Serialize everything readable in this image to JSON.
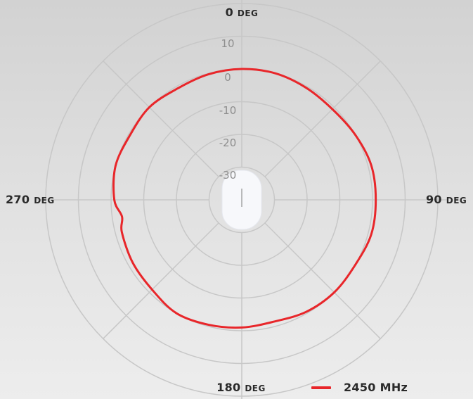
{
  "chart_data": {
    "type": "polar-line",
    "angular_labels": [
      {
        "angle": 0,
        "value": "0",
        "unit": "DEG"
      },
      {
        "angle": 90,
        "value": "90",
        "unit": "DEG"
      },
      {
        "angle": 180,
        "value": "180",
        "unit": "DEG"
      },
      {
        "angle": 270,
        "value": "270",
        "unit": "DEG"
      }
    ],
    "radial_ticks": [
      "10",
      "0",
      "-10",
      "-20",
      "-30"
    ],
    "radial_tick_values": [
      10,
      0,
      -10,
      -20,
      -30
    ],
    "rlim": [
      -40,
      20
    ],
    "grid": true,
    "legend_position": "bottom-right",
    "series": [
      {
        "name": "2450 MHz",
        "color": "#e8262a",
        "angles_deg": [
          0,
          15,
          30,
          45,
          60,
          75,
          90,
          105,
          120,
          135,
          150,
          165,
          180,
          195,
          210,
          225,
          240,
          255,
          262,
          270,
          285,
          300,
          315,
          330,
          345
        ],
        "values_dbi": [
          0.0,
          0.0,
          -0.5,
          -0.8,
          0.0,
          1.0,
          1.0,
          1.0,
          0.0,
          0.0,
          -0.5,
          -1.5,
          -1.0,
          -0.5,
          0.0,
          -1.2,
          -1.5,
          -2.0,
          -3.0,
          -1.0,
          0.0,
          -0.5,
          0.0,
          -0.7,
          -0.3
        ]
      }
    ]
  },
  "labels": {
    "top": {
      "value": "0",
      "unit": "DEG"
    },
    "right": {
      "value": "90",
      "unit": "DEG"
    },
    "bottom": {
      "value": "180",
      "unit": "DEG"
    },
    "left": {
      "value": "270",
      "unit": "DEG"
    }
  },
  "legend": {
    "label": "2450 MHz",
    "color": "#e8262a"
  },
  "colors": {
    "grid": "#c7c7c7",
    "ring_label": "#8e8e8e",
    "device": "#f7f8fb"
  },
  "device_icon": "access-point-icon"
}
